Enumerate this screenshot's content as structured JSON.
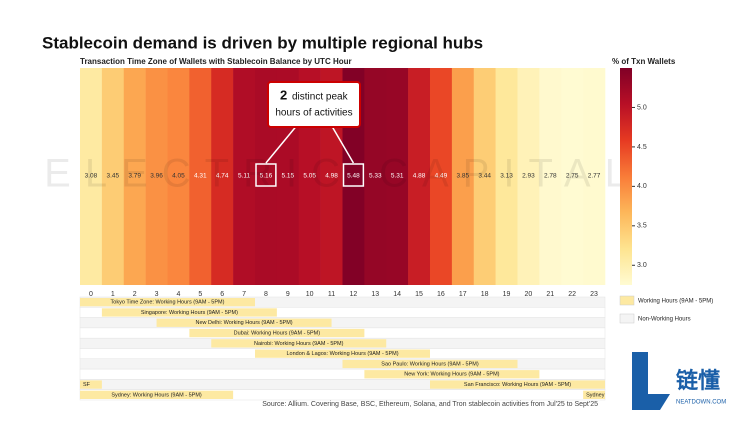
{
  "chart_data": {
    "type": "heatmap",
    "title": "Stablecoin demand is driven by multiple regional hubs",
    "subtitle": "Transaction Time Zone of Wallets with Stablecoin Balance by UTC Hour",
    "watermark": "ELECTRIC CAPITAL",
    "x": [
      0,
      1,
      2,
      3,
      4,
      5,
      6,
      7,
      8,
      9,
      10,
      11,
      12,
      13,
      14,
      15,
      16,
      17,
      18,
      19,
      20,
      21,
      22,
      23
    ],
    "values": [
      3.08,
      3.45,
      3.79,
      3.96,
      4.05,
      4.31,
      4.74,
      5.11,
      5.16,
      5.15,
      5.05,
      4.98,
      5.48,
      5.33,
      5.31,
      4.88,
      4.49,
      3.85,
      3.44,
      3.13,
      2.93,
      2.78,
      2.75,
      2.77
    ],
    "highlight": [
      8,
      12
    ],
    "annotation": {
      "lead": "2",
      "lines": [
        "distinct peak",
        "hours of activities"
      ]
    },
    "colorbar": {
      "label": "% of Txn Wallets",
      "clim": [
        2.75,
        5.5
      ],
      "ticks": [
        {
          "value": 3,
          "label": "3.0"
        },
        3.5,
        {
          "value": 4,
          "label": "4.0"
        },
        4.5,
        {
          "value": 5,
          "label": "5.0"
        }
      ],
      "colors": [
        "#fffbd2",
        "#fee490",
        "#fdb75a",
        "#f97c38",
        "#e63a22",
        "#b80f26",
        "#800026"
      ]
    },
    "timezones": [
      {
        "segments": [
          {
            "start": 0,
            "end": 8,
            "label": "Tokyo Time Zone: Working Hours (9AM - 5PM)"
          }
        ]
      },
      {
        "segments": [
          {
            "start": 1,
            "end": 9,
            "label": "Singapore: Working Hours (9AM - 5PM)"
          }
        ]
      },
      {
        "segments": [
          {
            "start": 3.5,
            "end": 11.5,
            "label": "New Delhi: Working Hours (9AM - 5PM)"
          }
        ]
      },
      {
        "segments": [
          {
            "start": 5,
            "end": 13,
            "label": "Dubai: Working Hours (9AM - 5PM)"
          }
        ]
      },
      {
        "segments": [
          {
            "start": 6,
            "end": 14,
            "label": "Nairobi: Working Hours (9AM - 5PM)"
          }
        ]
      },
      {
        "segments": [
          {
            "start": 8,
            "end": 16,
            "label": "London & Lagos: Working Hours (9AM - 5PM)"
          }
        ]
      },
      {
        "segments": [
          {
            "start": 12,
            "end": 20,
            "label": "Sao Paulo: Working Hours (9AM - 5PM)"
          }
        ]
      },
      {
        "segments": [
          {
            "start": 13,
            "end": 21,
            "label": "New York: Working Hours (9AM - 5PM)"
          }
        ]
      },
      {
        "segments": [
          {
            "start": 0,
            "end": 1,
            "label": "SF"
          },
          {
            "start": 16,
            "end": 24,
            "label": "San Francisco: Working Hours (9AM - 5PM)"
          }
        ]
      },
      {
        "segments": [
          {
            "start": 0,
            "end": 7,
            "label": "Sydney: Working Hours (9AM - 5PM)"
          },
          {
            "start": 23,
            "end": 24,
            "label": "Sydney"
          }
        ]
      }
    ],
    "legend": {
      "working": "Working Hours (9AM - 5PM)",
      "nonworking": "Non-Working Hours",
      "working_color": "#fde9a2",
      "nonworking_color": "#f4f4f4"
    },
    "source": "Source: Allium. Covering Base, BSC, Ethereum, Solana, and Tron stablecoin activities from Jul'25 to Sept'25",
    "logo": {
      "cn": "链懂",
      "en": "NEATDOWN.COM"
    }
  }
}
